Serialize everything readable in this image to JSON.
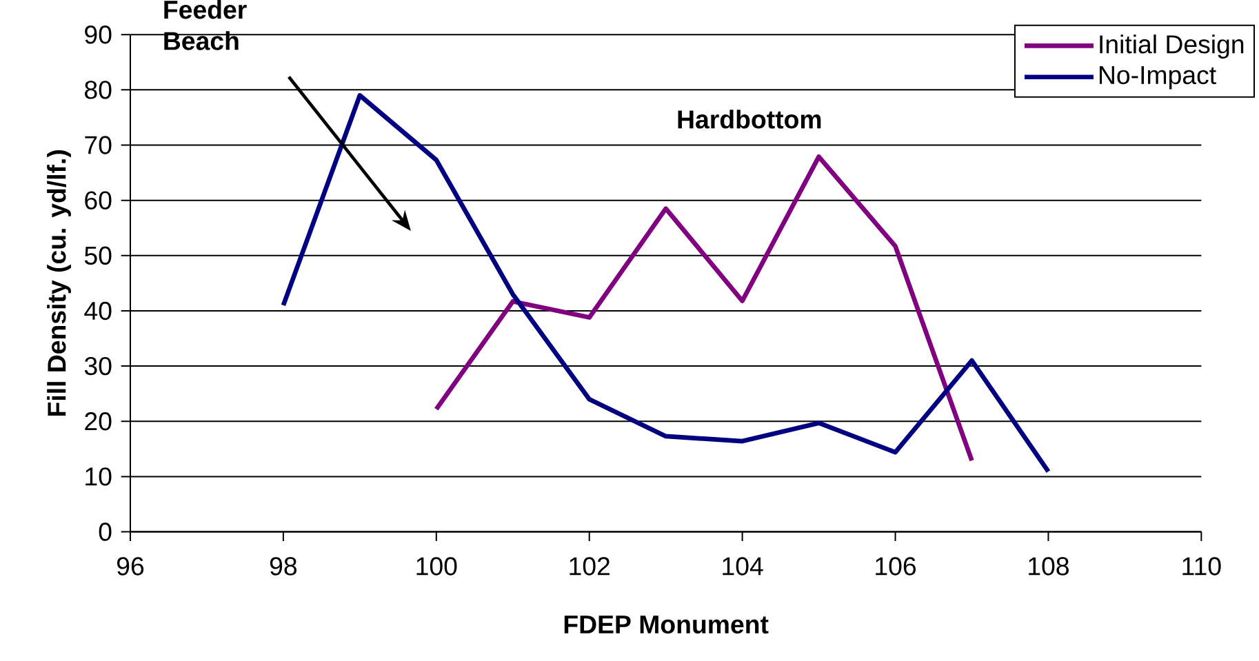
{
  "chart_data": {
    "type": "line",
    "xlabel": "FDEP Monument",
    "ylabel": "Fill Density (cu. yd/lf.)",
    "xlim": [
      96,
      110
    ],
    "xticks": [
      96,
      98,
      100,
      102,
      104,
      106,
      108,
      110
    ],
    "ylim": [
      0,
      90
    ],
    "yticks": [
      0,
      10,
      20,
      30,
      40,
      50,
      60,
      70,
      80,
      90
    ],
    "grid": "y",
    "legend": "top right",
    "marker": "none",
    "line_style": "solid",
    "annotations": [
      "Feeder Beach",
      "Hardbottom"
    ],
    "series": [
      {
        "name": "Initial Design",
        "color": "#800080",
        "x": [
          100,
          101,
          102,
          103,
          104,
          105,
          106,
          107
        ],
        "values": [
          22.2,
          41.7,
          38.8,
          58.5,
          41.8,
          67.9,
          51.7,
          12.9
        ]
      },
      {
        "name": "No-Impact",
        "color": "#000080",
        "x": [
          98,
          99,
          100,
          101,
          102,
          103,
          104,
          105,
          106,
          107,
          108
        ],
        "values": [
          41,
          79,
          67.3,
          43,
          24,
          17.3,
          16.4,
          19.7,
          14.4,
          31,
          10.9
        ]
      }
    ]
  }
}
